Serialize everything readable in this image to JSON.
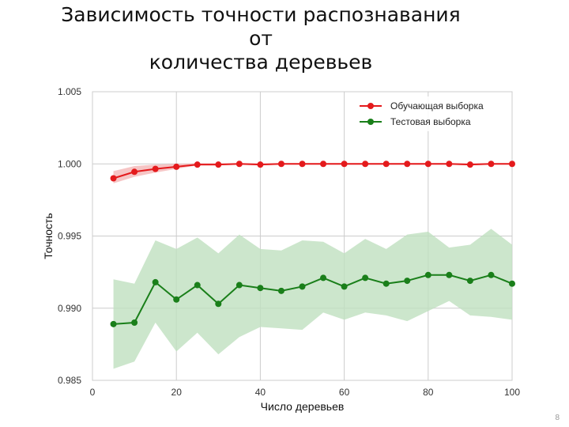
{
  "slide": {
    "title_line1": "Зависимость точности распознавания от",
    "title_line2": "количества деревьев",
    "page_number": "8"
  },
  "colors": {
    "train": "#e41a1c",
    "train_band": "#f4b6b6",
    "test": "#1a7f1a",
    "test_band": "#bfe0bf",
    "grid": "#cccccc"
  },
  "chart_data": {
    "type": "line",
    "title": "",
    "xlabel": "Число деревьев",
    "ylabel": "Точность",
    "xlim": [
      0,
      100
    ],
    "ylim": [
      0.985,
      1.005
    ],
    "xticks": [
      0,
      20,
      40,
      60,
      80,
      100
    ],
    "xtick_labels": [
      "0",
      "20",
      "40",
      "60",
      "80",
      "100"
    ],
    "yticks": [
      0.985,
      0.99,
      0.995,
      1.0,
      1.005
    ],
    "ytick_labels": [
      "0.985",
      "0.990",
      "0.995",
      "1.000",
      "1.005"
    ],
    "grid": true,
    "legend_position": "top-right",
    "x": [
      5,
      10,
      15,
      20,
      25,
      30,
      35,
      40,
      45,
      50,
      55,
      60,
      65,
      70,
      75,
      80,
      85,
      90,
      95,
      100
    ],
    "series": [
      {
        "name": "Обучающая выборка",
        "color_key": "train",
        "values": [
          0.999,
          0.99945,
          0.99965,
          0.9998,
          0.99995,
          0.99995,
          1.0,
          0.99995,
          1.0,
          1.0,
          1.0,
          1.0,
          1.0,
          1.0,
          1.0,
          1.0,
          1.0,
          0.99995,
          1.0,
          1.0
        ],
        "lower": [
          0.99865,
          0.9991,
          0.9994,
          0.99965,
          0.9999,
          0.9999,
          0.99995,
          0.9999,
          0.99995,
          0.99995,
          0.99995,
          0.99995,
          0.99995,
          0.99995,
          0.99995,
          0.99995,
          0.99995,
          0.9999,
          0.99995,
          0.99995
        ],
        "upper": [
          0.9995,
          0.99985,
          0.99995,
          1.0,
          1.00005,
          1.00005,
          1.00005,
          1.00005,
          1.00005,
          1.00005,
          1.00005,
          1.00005,
          1.00005,
          1.00005,
          1.00005,
          1.00005,
          1.00005,
          1.00005,
          1.00005,
          1.00005
        ]
      },
      {
        "name": "Тестовая выборка",
        "color_key": "test",
        "values": [
          0.9889,
          0.989,
          0.9918,
          0.9906,
          0.9916,
          0.9903,
          0.9916,
          0.9914,
          0.9912,
          0.9915,
          0.9921,
          0.9915,
          0.9921,
          0.9917,
          0.9919,
          0.9923,
          0.9923,
          0.9919,
          0.9923,
          0.9917
        ],
        "lower": [
          0.9858,
          0.9863,
          0.989,
          0.987,
          0.9883,
          0.9868,
          0.988,
          0.9887,
          0.9886,
          0.9885,
          0.9897,
          0.9892,
          0.9897,
          0.9895,
          0.9891,
          0.9898,
          0.9905,
          0.9895,
          0.9894,
          0.9892
        ],
        "upper": [
          0.992,
          0.9917,
          0.9947,
          0.9941,
          0.9949,
          0.9938,
          0.9951,
          0.9941,
          0.994,
          0.9947,
          0.9946,
          0.9938,
          0.9948,
          0.9941,
          0.9951,
          0.9953,
          0.9942,
          0.9944,
          0.9955,
          0.9944
        ]
      }
    ]
  }
}
